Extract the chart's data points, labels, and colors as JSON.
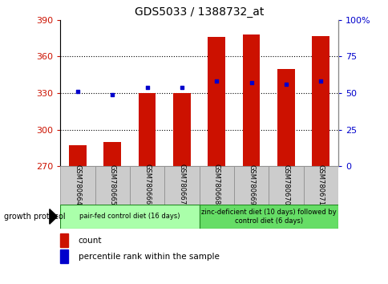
{
  "title": "GDS5033 / 1388732_at",
  "categories": [
    "GSM780664",
    "GSM780665",
    "GSM780666",
    "GSM780667",
    "GSM780668",
    "GSM780669",
    "GSM780670",
    "GSM780671"
  ],
  "bar_values": [
    287,
    290,
    330,
    330,
    376,
    378,
    350,
    377
  ],
  "bar_color": "#cc1100",
  "dot_color": "#0000cc",
  "ylim_left": [
    270,
    390
  ],
  "yticks_left": [
    270,
    300,
    330,
    360,
    390
  ],
  "ylim_right": [
    0,
    100
  ],
  "yticks_right": [
    0,
    25,
    50,
    75,
    100
  ],
  "ytick_labels_right": [
    "0",
    "25",
    "50",
    "75",
    "100%"
  ],
  "bar_width": 0.5,
  "grid_color": "#000000",
  "group1_label": "pair-fed control diet (16 days)",
  "group2_label": "zinc-deficient diet (10 days) followed by\ncontrol diet (6 days)",
  "group1_color": "#aaffaa",
  "group2_color": "#66dd66",
  "growth_protocol_label": "growth protocol",
  "legend_count_label": "count",
  "legend_pct_label": "percentile rank within the sample",
  "title_color": "#000000",
  "left_tick_color": "#cc1100",
  "right_tick_color": "#0000cc",
  "bar_bottom": 270,
  "pct_values": [
    51,
    49,
    54,
    54,
    58,
    57,
    56,
    58
  ],
  "sample_box_color": "#cccccc",
  "spine_color": "#888888"
}
